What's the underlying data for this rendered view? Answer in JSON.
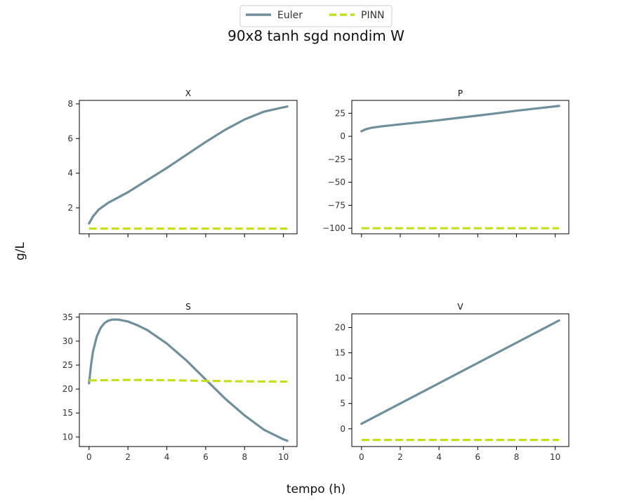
{
  "suptitle": "90x8 tanh sgd nondim W",
  "xlabel": "tempo (h)",
  "ylabel": "g/L",
  "legend": {
    "placement": "top-center",
    "entries": [
      {
        "name": "Euler",
        "color": "#6e8f9b",
        "style": "solid"
      },
      {
        "name": "PINN",
        "color": "#c5e01a",
        "style": "dashed"
      }
    ]
  },
  "chart_data": [
    {
      "type": "line",
      "title": "X",
      "xlim": [
        -0.5,
        10.7
      ],
      "ylim": [
        0.5,
        8.2
      ],
      "xticks": [
        0,
        2,
        4,
        6,
        8,
        10
      ],
      "yticks": [
        2,
        4,
        6,
        8
      ],
      "xticklabels_visible": false,
      "grid": false,
      "series": [
        {
          "name": "Euler",
          "x": [
            0,
            0.2,
            0.5,
            1,
            1.5,
            2,
            3,
            4,
            5,
            6,
            7,
            8,
            9,
            10,
            10.2
          ],
          "y": [
            1.1,
            1.5,
            1.9,
            2.3,
            2.6,
            2.9,
            3.6,
            4.3,
            5.05,
            5.8,
            6.5,
            7.1,
            7.55,
            7.8,
            7.85
          ]
        },
        {
          "name": "PINN",
          "x": [
            0,
            10.2
          ],
          "y": [
            0.8,
            0.8
          ]
        }
      ]
    },
    {
      "type": "line",
      "title": "P",
      "xlim": [
        -0.5,
        10.7
      ],
      "ylim": [
        -106,
        39
      ],
      "xticks": [
        0,
        2,
        4,
        6,
        8,
        10
      ],
      "yticks": [
        -100,
        -75,
        -50,
        -25,
        0,
        25
      ],
      "xticklabels_visible": false,
      "grid": false,
      "series": [
        {
          "name": "Euler",
          "x": [
            0,
            0.2,
            0.5,
            1,
            2,
            3,
            4,
            5,
            6,
            7,
            8,
            9,
            10,
            10.2
          ],
          "y": [
            5.5,
            7.5,
            9.2,
            10.7,
            13,
            15.2,
            17.5,
            20,
            22.5,
            25,
            27.8,
            30.2,
            32.5,
            33
          ]
        },
        {
          "name": "PINN",
          "x": [
            0,
            10.2
          ],
          "y": [
            -100,
            -100
          ]
        }
      ]
    },
    {
      "type": "line",
      "title": "S",
      "xlim": [
        -0.5,
        10.7
      ],
      "ylim": [
        8.0,
        35.7
      ],
      "xticks": [
        0,
        2,
        4,
        6,
        8,
        10
      ],
      "yticks": [
        10,
        15,
        20,
        25,
        30,
        35
      ],
      "xticklabels_visible": true,
      "grid": false,
      "series": [
        {
          "name": "Euler",
          "x": [
            0,
            0.1,
            0.2,
            0.4,
            0.6,
            0.8,
            1.0,
            1.2,
            1.5,
            2,
            2.5,
            3,
            4,
            5,
            6,
            7,
            8,
            9,
            10,
            10.2
          ],
          "y": [
            21.2,
            25,
            27.8,
            31,
            32.8,
            33.8,
            34.3,
            34.5,
            34.5,
            34.1,
            33.3,
            32.3,
            29.5,
            26,
            22,
            18,
            14.5,
            11.5,
            9.5,
            9.2
          ]
        },
        {
          "name": "PINN",
          "x": [
            0,
            2,
            4,
            6,
            8,
            10.2
          ],
          "y": [
            21.8,
            21.9,
            21.85,
            21.7,
            21.6,
            21.55
          ]
        }
      ]
    },
    {
      "type": "line",
      "title": "V",
      "xlim": [
        -0.5,
        10.7
      ],
      "ylim": [
        -3.5,
        22.7
      ],
      "xticks": [
        0,
        2,
        4,
        6,
        8,
        10
      ],
      "yticks": [
        0,
        5,
        10,
        15,
        20
      ],
      "xticklabels_visible": true,
      "grid": false,
      "series": [
        {
          "name": "Euler",
          "x": [
            0,
            10.2
          ],
          "y": [
            1.0,
            21.4
          ]
        },
        {
          "name": "PINN",
          "x": [
            0,
            10.2
          ],
          "y": [
            -2.2,
            -2.2
          ]
        }
      ]
    }
  ]
}
